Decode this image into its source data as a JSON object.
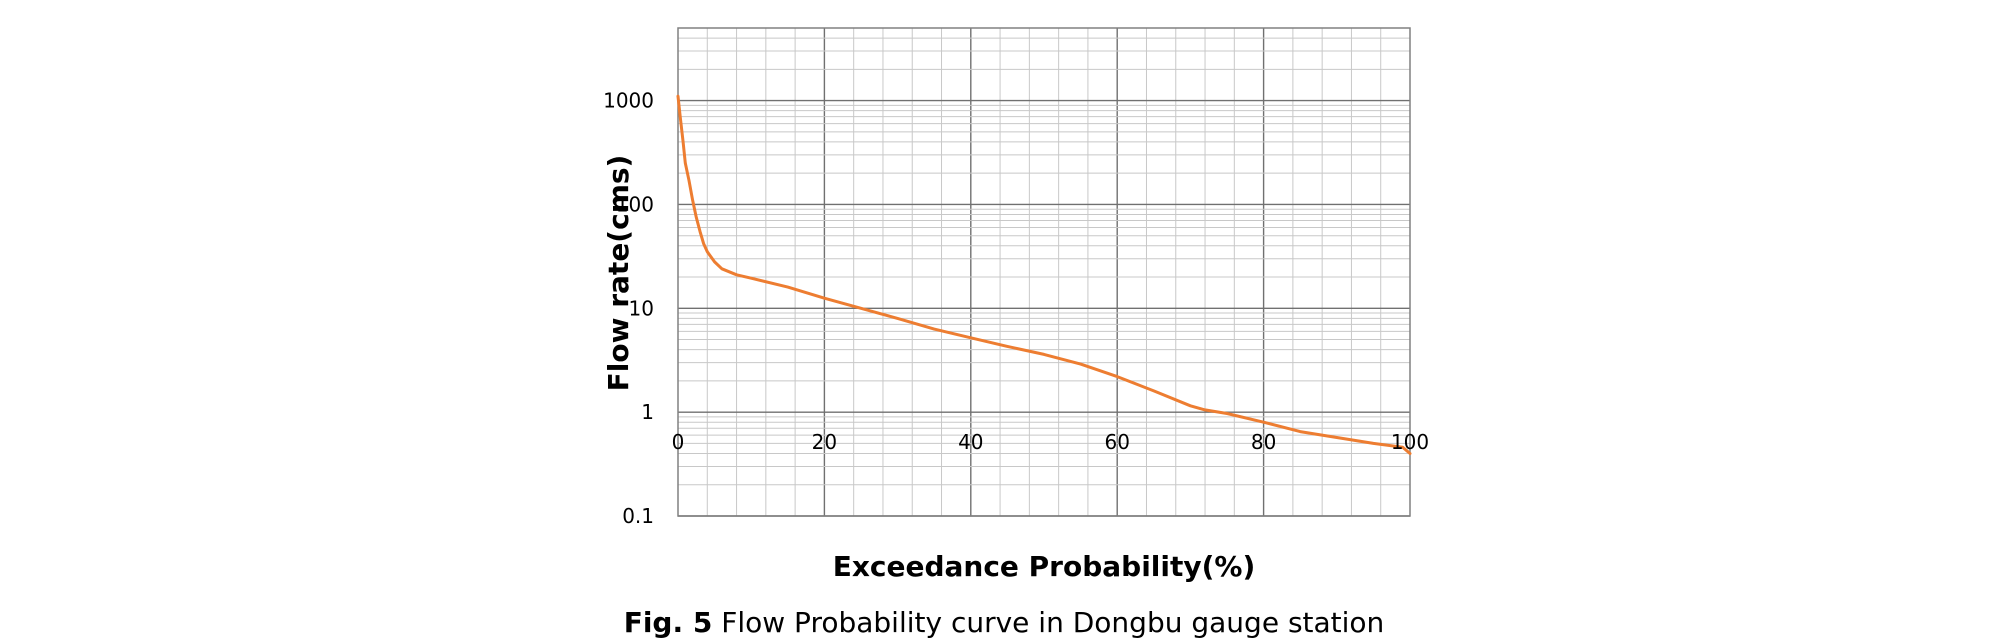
{
  "chart_data": {
    "type": "line",
    "title": "",
    "xlabel": "Exceedance Probability(%)",
    "ylabel": "Flow rate(cms)",
    "xlim": [
      0,
      100
    ],
    "ylim": [
      0.1,
      5000
    ],
    "y_scale": "log",
    "grid": true,
    "legend": "none",
    "x_ticks": [
      0,
      20,
      40,
      60,
      80,
      100
    ],
    "x_tick_labels": [
      "0",
      "20",
      "40",
      "60",
      "80",
      "100"
    ],
    "y_ticks": [
      0.1,
      1,
      10,
      100,
      1000
    ],
    "y_tick_labels": [
      "0.1",
      "1",
      "10",
      "100",
      "1000"
    ],
    "series": [
      {
        "color": "#ED7D31",
        "x": [
          0,
          0.3,
          0.7,
          1,
          1.5,
          2,
          2.5,
          3,
          3.5,
          4,
          5,
          6,
          8,
          10,
          15,
          20,
          25,
          30,
          35,
          40,
          45,
          50,
          55,
          60,
          65,
          70,
          72,
          75,
          80,
          85,
          90,
          95,
          99,
          100
        ],
        "y": [
          1100,
          700,
          400,
          250,
          170,
          110,
          75,
          55,
          42,
          35,
          28,
          24,
          21,
          19.5,
          16,
          12.5,
          10,
          8,
          6.3,
          5.2,
          4.3,
          3.6,
          2.9,
          2.2,
          1.6,
          1.15,
          1.05,
          0.97,
          0.8,
          0.65,
          0.57,
          0.5,
          0.46,
          0.4
        ]
      }
    ]
  },
  "caption": {
    "label": "Fig. 5",
    "text": " Flow Probability curve in Dongbu gauge station"
  }
}
